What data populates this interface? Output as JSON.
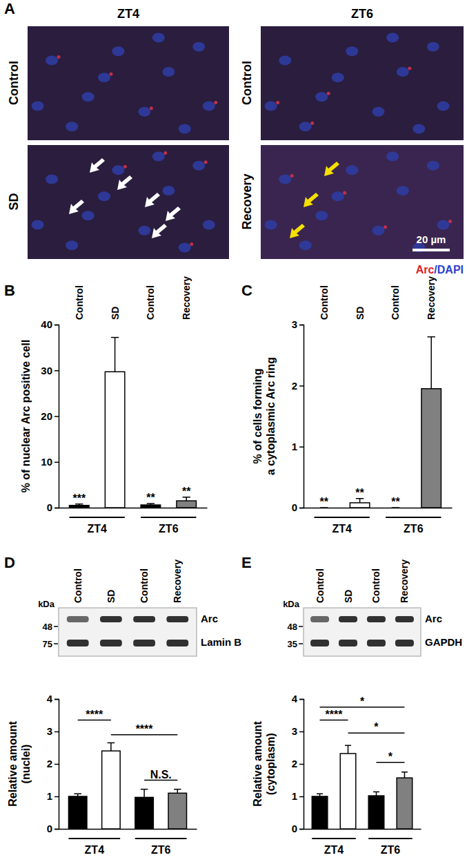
{
  "figure_image": {
    "panel": "A",
    "columns": [
      "ZT4",
      "ZT6"
    ],
    "rows": [
      [
        "Control",
        "SD"
      ],
      [
        "Control",
        "Recovery"
      ]
    ],
    "scale_bar": "20 µm",
    "stain_legend": [
      {
        "label": "Arc",
        "color": "#e0202a"
      },
      {
        "label": "/DAPI",
        "color": "#2a3fd0"
      }
    ]
  },
  "chart_data": [
    {
      "panel": "B",
      "type": "bar",
      "categories": [
        "Control",
        "SD",
        "Control",
        "Recovery"
      ],
      "values": [
        0.5,
        29.7,
        0.6,
        1.5
      ],
      "errors": [
        0.3,
        7.5,
        0.3,
        0.8
      ],
      "colors": [
        "#000000",
        "#ffffff",
        "#000000",
        "#808080"
      ],
      "ylim": [
        0,
        40
      ],
      "yticks": [
        0,
        10,
        20,
        30,
        40
      ],
      "ylabel": [
        "% of nuclear Arc positive cell"
      ],
      "groups": [
        {
          "label": "ZT4",
          "start": 0,
          "end": 1
        },
        {
          "label": "ZT6",
          "start": 2,
          "end": 3
        }
      ],
      "annotations": [
        {
          "category": 0,
          "label": "***"
        },
        {
          "category": 2,
          "label": "**"
        },
        {
          "category": 3,
          "label": "**"
        }
      ]
    },
    {
      "panel": "C",
      "type": "bar",
      "categories": [
        "Control",
        "SD",
        "Control",
        "Recovery"
      ],
      "values": [
        0,
        0.08,
        0,
        1.95
      ],
      "errors": [
        0,
        0.07,
        0,
        0.85
      ],
      "colors": [
        "#000000",
        "#ffffff",
        "#000000",
        "#808080"
      ],
      "ylim": [
        0,
        3
      ],
      "yticks": [
        0,
        1,
        2,
        3
      ],
      "ylabel": [
        "% of cells forming",
        "a cytoplasmic Arc ring"
      ],
      "groups": [
        {
          "label": "ZT4",
          "start": 0,
          "end": 1
        },
        {
          "label": "ZT6",
          "start": 2,
          "end": 3
        }
      ],
      "annotations": [
        {
          "category": 0,
          "label": "**"
        },
        {
          "category": 1,
          "label": "**"
        },
        {
          "category": 2,
          "label": "**"
        }
      ]
    },
    {
      "panel": "D",
      "type": "bar",
      "categories": [
        "Control",
        "SD",
        "Control",
        "Recovery"
      ],
      "values": [
        1.0,
        2.4,
        0.97,
        1.1
      ],
      "errors": [
        0.08,
        0.25,
        0.25,
        0.12
      ],
      "colors": [
        "#000000",
        "#ffffff",
        "#000000",
        "#808080"
      ],
      "ylim": [
        0,
        4
      ],
      "yticks": [
        0,
        1,
        2,
        3,
        4
      ],
      "ylabel": [
        "Relative amount",
        "(nuclei)"
      ],
      "groups": [
        {
          "label": "ZT4",
          "start": 0,
          "end": 1
        },
        {
          "label": "ZT6",
          "start": 2,
          "end": 3
        }
      ],
      "blot": {
        "kda": "kDa",
        "markers": [
          48,
          75
        ],
        "bands": [
          "Arc",
          "Lamin B"
        ]
      },
      "annotations": [
        {
          "from": 0,
          "to": 1,
          "y": 3.35,
          "label": "****"
        },
        {
          "from": 1,
          "to": 3,
          "y": 2.9,
          "label": "****"
        },
        {
          "from": 2,
          "to": 3,
          "y": 1.5,
          "label": "N.S."
        }
      ]
    },
    {
      "panel": "E",
      "type": "bar",
      "categories": [
        "Control",
        "SD",
        "Control",
        "Recovery"
      ],
      "values": [
        1.0,
        2.32,
        1.02,
        1.57
      ],
      "errors": [
        0.08,
        0.25,
        0.12,
        0.18
      ],
      "colors": [
        "#000000",
        "#ffffff",
        "#000000",
        "#808080"
      ],
      "ylim": [
        0,
        4
      ],
      "yticks": [
        0,
        1,
        2,
        3,
        4
      ],
      "ylabel": [
        "Relative amount",
        "(cytoplasm)"
      ],
      "groups": [
        {
          "label": "ZT4",
          "start": 0,
          "end": 1
        },
        {
          "label": "ZT6",
          "start": 2,
          "end": 3
        }
      ],
      "blot": {
        "kda": "kDa",
        "markers": [
          48,
          35
        ],
        "bands": [
          "Arc",
          "GAPDH"
        ]
      },
      "annotations": [
        {
          "from": 0,
          "to": 3,
          "y": 3.75,
          "label": "*"
        },
        {
          "from": 0,
          "to": 1,
          "y": 3.35,
          "label": "****"
        },
        {
          "from": 1,
          "to": 3,
          "y": 2.95,
          "label": "*"
        },
        {
          "from": 2,
          "to": 3,
          "y": 2.05,
          "label": "*"
        }
      ]
    }
  ]
}
